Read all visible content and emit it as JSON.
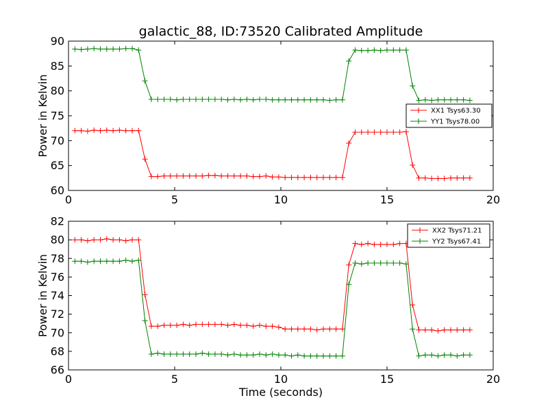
{
  "chart_data": [
    {
      "type": "line",
      "title": "galactic_88, ID:73520 Calibrated Amplitude",
      "xlabel": "",
      "ylabel": "Power in Kelvin",
      "xlim": [
        0,
        20
      ],
      "ylim": [
        60,
        90
      ],
      "xticks": [
        "0",
        "5",
        "10",
        "15",
        "20"
      ],
      "yticks": [
        "60",
        "65",
        "70",
        "75",
        "80",
        "85",
        "90"
      ],
      "legend_position": "center-right",
      "x": [
        0.3,
        0.6,
        0.9,
        1.2,
        1.5,
        1.8,
        2.1,
        2.4,
        2.7,
        3.0,
        3.3,
        3.6,
        3.9,
        4.2,
        4.5,
        4.8,
        5.1,
        5.4,
        5.7,
        6.0,
        6.3,
        6.6,
        6.9,
        7.2,
        7.5,
        7.8,
        8.1,
        8.4,
        8.7,
        9.0,
        9.3,
        9.6,
        9.9,
        10.2,
        10.5,
        10.8,
        11.1,
        11.4,
        11.7,
        12.0,
        12.3,
        12.6,
        12.9,
        13.2,
        13.5,
        13.8,
        14.1,
        14.4,
        14.7,
        15.0,
        15.3,
        15.6,
        15.9,
        16.2,
        16.5,
        16.8,
        17.1,
        17.4,
        17.7,
        18.0,
        18.3,
        18.6,
        18.9
      ],
      "series": [
        {
          "name": "XX1 Tsys63.30",
          "color": "#ff0000",
          "values": [
            72.0,
            72.0,
            71.9,
            72.1,
            72.0,
            72.1,
            72.0,
            72.1,
            72.0,
            72.0,
            72.0,
            66.3,
            62.8,
            62.8,
            62.9,
            62.9,
            62.9,
            62.9,
            62.9,
            62.9,
            62.9,
            63.0,
            63.0,
            62.9,
            62.9,
            62.9,
            62.9,
            62.9,
            62.8,
            62.8,
            62.9,
            62.7,
            62.7,
            62.6,
            62.6,
            62.6,
            62.6,
            62.6,
            62.6,
            62.6,
            62.6,
            62.6,
            62.6,
            69.5,
            71.7,
            71.7,
            71.7,
            71.7,
            71.7,
            71.7,
            71.7,
            71.7,
            71.8,
            65.1,
            62.5,
            62.5,
            62.4,
            62.4,
            62.4,
            62.5,
            62.5,
            62.5,
            62.5
          ]
        },
        {
          "name": "YY1 Tsys78.00",
          "color": "#008000",
          "values": [
            88.4,
            88.3,
            88.4,
            88.5,
            88.4,
            88.4,
            88.4,
            88.4,
            88.5,
            88.5,
            88.2,
            82.0,
            78.3,
            78.3,
            78.3,
            78.3,
            78.2,
            78.3,
            78.3,
            78.3,
            78.3,
            78.3,
            78.3,
            78.3,
            78.2,
            78.3,
            78.2,
            78.3,
            78.2,
            78.3,
            78.3,
            78.2,
            78.2,
            78.2,
            78.2,
            78.2,
            78.2,
            78.2,
            78.2,
            78.2,
            78.1,
            78.2,
            78.2,
            86.0,
            88.2,
            88.1,
            88.1,
            88.2,
            88.1,
            88.2,
            88.2,
            88.2,
            88.2,
            81.0,
            78.1,
            78.2,
            78.1,
            78.2,
            78.2,
            78.2,
            78.2,
            78.2,
            78.1
          ]
        }
      ]
    },
    {
      "type": "line",
      "title": "",
      "xlabel": "Time (seconds)",
      "ylabel": "Power in Kelvin",
      "xlim": [
        0,
        20
      ],
      "ylim": [
        66,
        82
      ],
      "xticks": [
        "0",
        "5",
        "10",
        "15",
        "20"
      ],
      "yticks": [
        "66",
        "68",
        "70",
        "72",
        "74",
        "76",
        "78",
        "80",
        "82"
      ],
      "legend_position": "top-right",
      "x": [
        0.3,
        0.6,
        0.9,
        1.2,
        1.5,
        1.8,
        2.1,
        2.4,
        2.7,
        3.0,
        3.3,
        3.6,
        3.9,
        4.2,
        4.5,
        4.8,
        5.1,
        5.4,
        5.7,
        6.0,
        6.3,
        6.6,
        6.9,
        7.2,
        7.5,
        7.8,
        8.1,
        8.4,
        8.7,
        9.0,
        9.3,
        9.6,
        9.9,
        10.2,
        10.5,
        10.8,
        11.1,
        11.4,
        11.7,
        12.0,
        12.3,
        12.6,
        12.9,
        13.2,
        13.5,
        13.8,
        14.1,
        14.4,
        14.7,
        15.0,
        15.3,
        15.6,
        15.9,
        16.2,
        16.5,
        16.8,
        17.1,
        17.4,
        17.7,
        18.0,
        18.3,
        18.6,
        18.9
      ],
      "series": [
        {
          "name": "XX2 Tsys71.21",
          "color": "#ff0000",
          "values": [
            80.0,
            80.0,
            79.9,
            80.0,
            80.0,
            80.1,
            80.0,
            80.0,
            79.9,
            80.0,
            80.0,
            74.1,
            70.7,
            70.7,
            70.8,
            70.8,
            70.8,
            70.9,
            70.8,
            70.9,
            70.9,
            70.9,
            70.9,
            70.9,
            70.8,
            70.9,
            70.8,
            70.8,
            70.7,
            70.8,
            70.7,
            70.7,
            70.6,
            70.4,
            70.4,
            70.4,
            70.4,
            70.4,
            70.3,
            70.4,
            70.4,
            70.4,
            70.4,
            77.3,
            79.6,
            79.5,
            79.6,
            79.5,
            79.5,
            79.5,
            79.5,
            79.6,
            79.6,
            73.0,
            70.3,
            70.3,
            70.3,
            70.2,
            70.3,
            70.3,
            70.3,
            70.3,
            70.3
          ]
        },
        {
          "name": "YY2 Tsys67.41",
          "color": "#008000",
          "values": [
            77.7,
            77.7,
            77.6,
            77.7,
            77.7,
            77.7,
            77.7,
            77.7,
            77.8,
            77.7,
            77.8,
            71.3,
            67.7,
            67.8,
            67.7,
            67.7,
            67.7,
            67.7,
            67.7,
            67.7,
            67.8,
            67.7,
            67.7,
            67.7,
            67.6,
            67.7,
            67.6,
            67.6,
            67.6,
            67.7,
            67.6,
            67.7,
            67.6,
            67.6,
            67.5,
            67.6,
            67.5,
            67.5,
            67.5,
            67.5,
            67.5,
            67.5,
            67.5,
            75.2,
            77.5,
            77.4,
            77.5,
            77.5,
            77.5,
            77.5,
            77.5,
            77.5,
            77.4,
            70.4,
            67.5,
            67.6,
            67.6,
            67.5,
            67.6,
            67.6,
            67.5,
            67.6,
            67.6
          ]
        }
      ]
    }
  ]
}
